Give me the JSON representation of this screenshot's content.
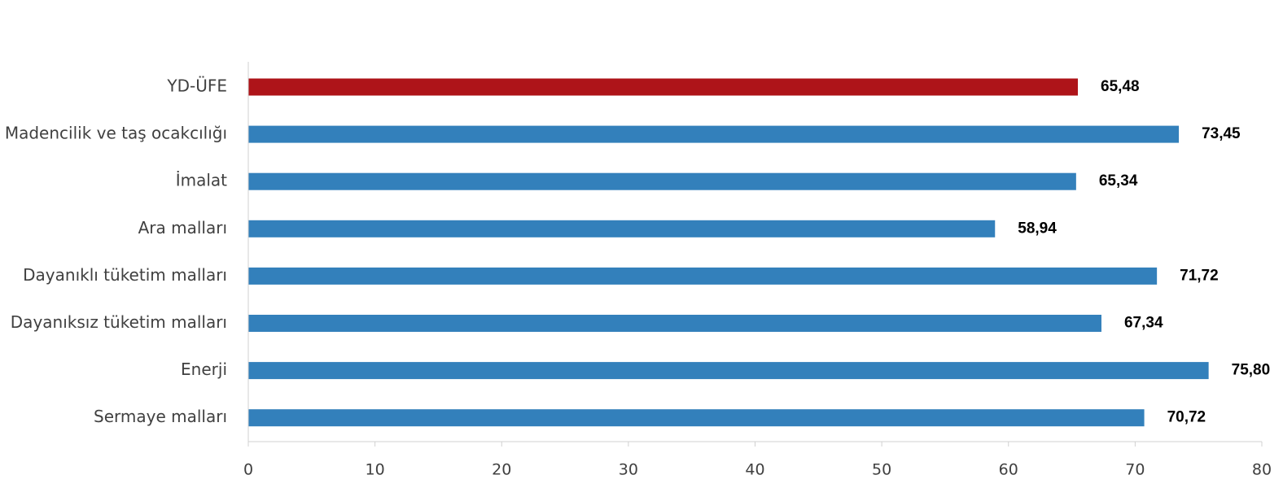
{
  "chart_data": {
    "type": "bar",
    "orientation": "horizontal",
    "title": "",
    "xlabel": "",
    "ylabel": "",
    "xlim": [
      0,
      80
    ],
    "ticks": [
      "0",
      "10",
      "20",
      "30",
      "40",
      "50",
      "60",
      "70",
      "80"
    ],
    "tick_values": [
      0,
      10,
      20,
      30,
      40,
      50,
      60,
      70,
      80
    ],
    "grid": false,
    "legend": "none",
    "categories": [
      "YD-ÜFE",
      "Madencilik ve taş ocakcılığı",
      "İmalat",
      "Ara malları",
      "Dayanıklı tüketim malları",
      "Dayanıksız tüketim malları",
      "Enerji",
      "Sermaye malları"
    ],
    "values": [
      65.48,
      73.45,
      65.34,
      58.94,
      71.72,
      67.34,
      75.8,
      70.72
    ],
    "value_labels": [
      "65,48",
      "73,45",
      "65,34",
      "58,94",
      "71,72",
      "67,34",
      "75,80",
      "70,72"
    ],
    "colors": [
      "#ae1419",
      "#3380bb",
      "#3380bb",
      "#3380bb",
      "#3380bb",
      "#3380bb",
      "#3380bb",
      "#3380bb"
    ]
  }
}
